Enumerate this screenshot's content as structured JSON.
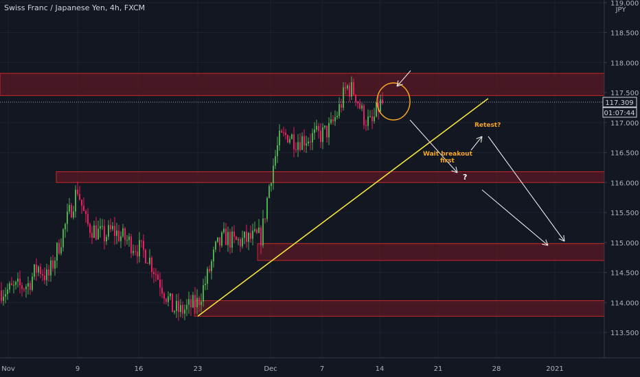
{
  "header": {
    "title": "Swiss Franc / Japanese Yen, 4h, FXCM"
  },
  "price_axis": {
    "currency": "JPY",
    "current_price": "117.309",
    "countdown": "01:07:44"
  },
  "annotations": {
    "retest": "Retest?",
    "wait_line1": "Wait breakout",
    "wait_line2": "first",
    "question": "?"
  },
  "colors": {
    "background": "#131722",
    "up_candle": "#4caf50",
    "down_candle": "#e91e63",
    "zone_fill": "#5a1a24",
    "zone_border": "#c62828",
    "trendline": "#f5e642",
    "note": "#f5a623"
  },
  "chart_data": {
    "type": "candlestick",
    "title": "Swiss Franc / Japanese Yen, 4h, FXCM",
    "y_ticks": [
      113.5,
      114.0,
      114.5,
      115.0,
      115.5,
      116.0,
      116.5,
      117.0,
      117.5,
      118.0,
      118.5,
      119.0
    ],
    "y_range": [
      113.15,
      119.05
    ],
    "x_ticks": [
      "Nov",
      "9",
      "16",
      "23",
      "Dec",
      "7",
      "14",
      "21",
      "28",
      "2021"
    ],
    "x_tick_dates": [
      "2020-11-02",
      "2020-11-09",
      "2020-11-16",
      "2020-11-23",
      "2020-12-01",
      "2020-12-07",
      "2020-12-14",
      "2020-12-21",
      "2020-12-28",
      "2021-01-01"
    ],
    "series_close": [
      {
        "date": "2020-11-02",
        "close": 114.2
      },
      {
        "date": "2020-11-04",
        "close": 114.3
      },
      {
        "date": "2020-11-05",
        "close": 114.6
      },
      {
        "date": "2020-11-06",
        "close": 114.4
      },
      {
        "date": "2020-11-09",
        "close": 115.9
      },
      {
        "date": "2020-11-10",
        "close": 115.3
      },
      {
        "date": "2020-11-11",
        "close": 115.2
      },
      {
        "date": "2020-11-12",
        "close": 115.1
      },
      {
        "date": "2020-11-13",
        "close": 115.2
      },
      {
        "date": "2020-11-16",
        "close": 114.9
      },
      {
        "date": "2020-11-17",
        "close": 114.8
      },
      {
        "date": "2020-11-18",
        "close": 114.5
      },
      {
        "date": "2020-11-19",
        "close": 114.2
      },
      {
        "date": "2020-11-20",
        "close": 113.9
      },
      {
        "date": "2020-11-21",
        "close": 113.85
      },
      {
        "date": "2020-11-23",
        "close": 114.0
      },
      {
        "date": "2020-11-24",
        "close": 114.4
      },
      {
        "date": "2020-11-25",
        "close": 114.9
      },
      {
        "date": "2020-11-26",
        "close": 115.1
      },
      {
        "date": "2020-11-27",
        "close": 115.0
      },
      {
        "date": "2020-11-30",
        "close": 115.1
      },
      {
        "date": "2020-12-01",
        "close": 116.1
      },
      {
        "date": "2020-12-02",
        "close": 116.7
      },
      {
        "date": "2020-12-03",
        "close": 116.8
      },
      {
        "date": "2020-12-04",
        "close": 116.7
      },
      {
        "date": "2020-12-07",
        "close": 116.8
      },
      {
        "date": "2020-12-08",
        "close": 116.9
      },
      {
        "date": "2020-12-09",
        "close": 117.2
      },
      {
        "date": "2020-12-10",
        "close": 117.6
      },
      {
        "date": "2020-12-11",
        "close": 117.5
      },
      {
        "date": "2020-12-12",
        "close": 117.1
      },
      {
        "date": "2020-12-13",
        "close": 116.95
      },
      {
        "date": "2020-12-14",
        "close": 117.309
      }
    ],
    "zones": [
      {
        "from": 117.45,
        "to": 117.82
      },
      {
        "from": 116.0,
        "to": 116.18
      },
      {
        "from": 114.7,
        "to": 114.98
      },
      {
        "from": 113.77,
        "to": 114.03
      }
    ],
    "trendline": {
      "start": {
        "date": "2020-11-23",
        "price": 113.77
      },
      "end": {
        "date": "2020-12-27",
        "price": 117.4
      }
    }
  }
}
